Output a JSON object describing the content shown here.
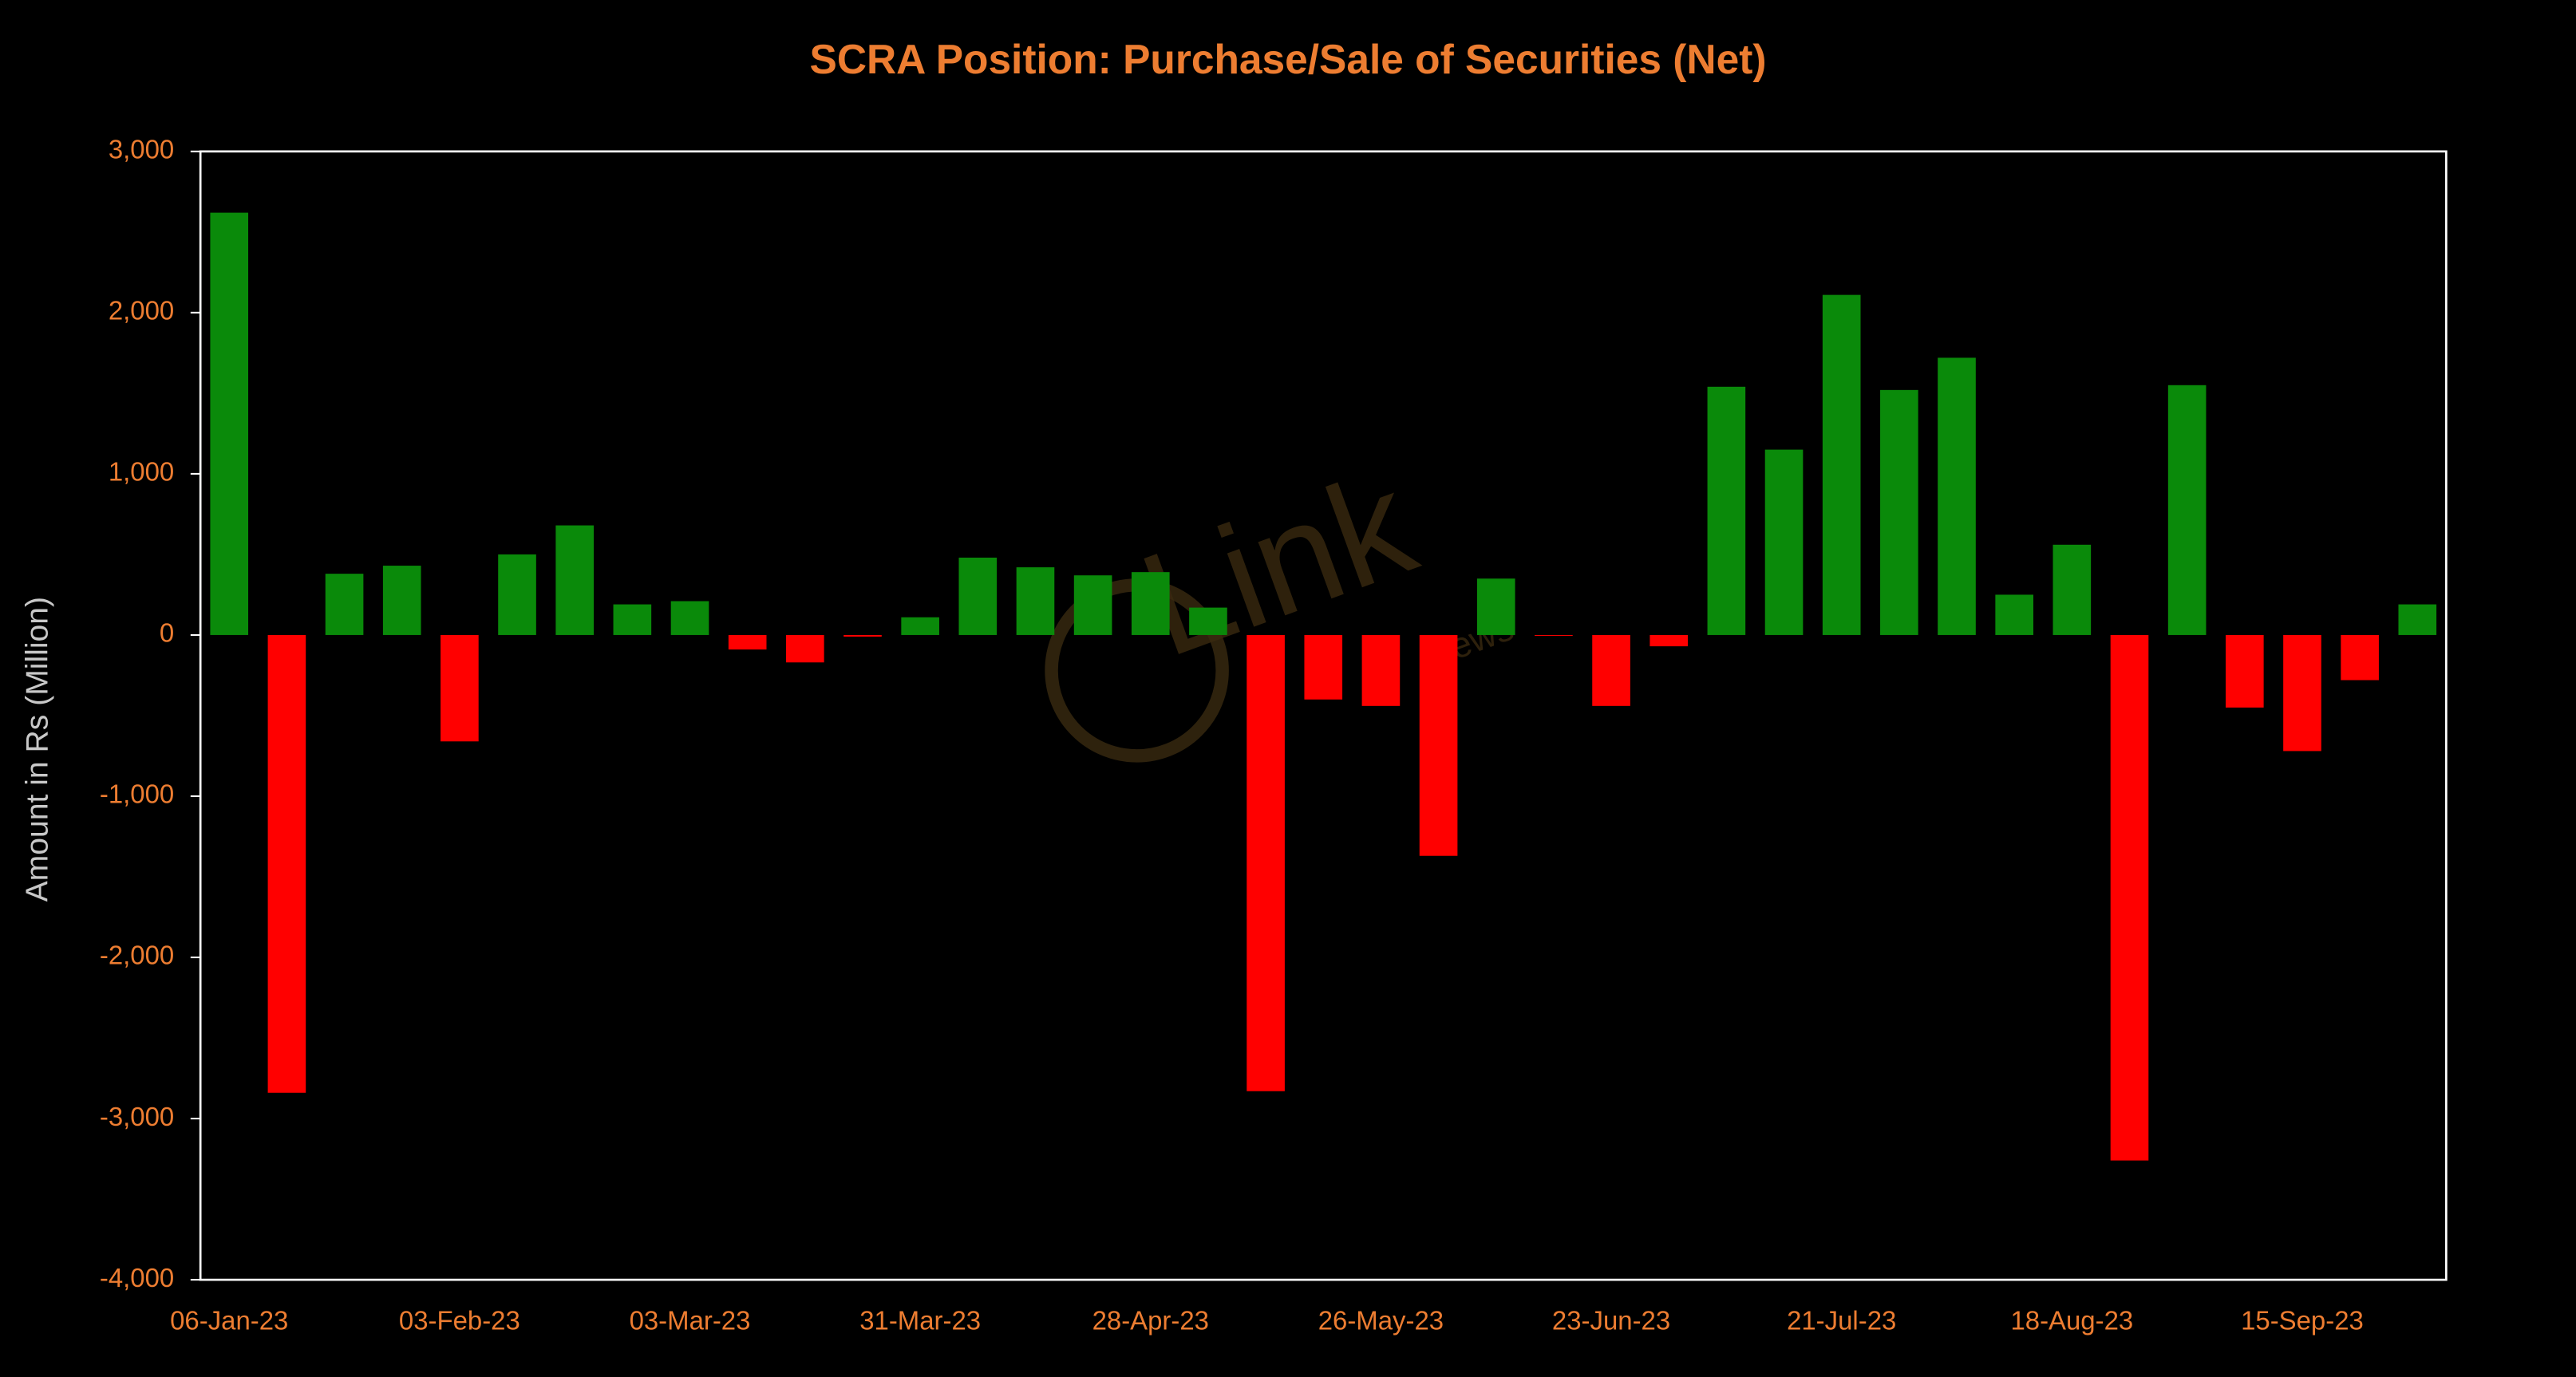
{
  "chart_data": {
    "type": "bar",
    "title": "SCRA Position: Purchase/Sale of Securities (Net)",
    "y_label": "Amount in Rs (Million)",
    "watermark": [
      "Link",
      "News"
    ],
    "categories": [
      "06-Jan-23",
      null,
      null,
      null,
      "03-Feb-23",
      null,
      null,
      null,
      "03-Mar-23",
      null,
      null,
      null,
      "31-Mar-23",
      null,
      null,
      null,
      "28-Apr-23",
      null,
      null,
      null,
      "26-May-23",
      null,
      null,
      null,
      "23-Jun-23",
      null,
      null,
      null,
      "21-Jul-23",
      null,
      null,
      null,
      "18-Aug-23",
      null,
      null,
      null,
      "15-Sep-23",
      null,
      null
    ],
    "values": [
      2620,
      -2840,
      380,
      430,
      -660,
      500,
      680,
      190,
      210,
      -90,
      -170,
      -10,
      110,
      480,
      420,
      370,
      390,
      170,
      -2830,
      -400,
      -440,
      -1370,
      350,
      -5,
      -440,
      -70,
      1540,
      1150,
      2110,
      1520,
      1720,
      250,
      560,
      -3260,
      1550,
      -450,
      -720,
      -280,
      190
    ],
    "colors": {
      "positive": "#0a8a0a",
      "negative": "#ff0000"
    },
    "ylim": [
      -4000,
      3000
    ],
    "yticks": [
      {
        "value": -4000,
        "label": "-4,000"
      },
      {
        "value": -3000,
        "label": "-3,000"
      },
      {
        "value": -2000,
        "label": "-2,000"
      },
      {
        "value": -1000,
        "label": "-1,000"
      },
      0,
      {
        "value": 1000,
        "label": "1,000"
      },
      {
        "value": 2000,
        "label": "2,000"
      },
      {
        "value": 3000,
        "label": "3,000"
      }
    ],
    "grid": false
  }
}
